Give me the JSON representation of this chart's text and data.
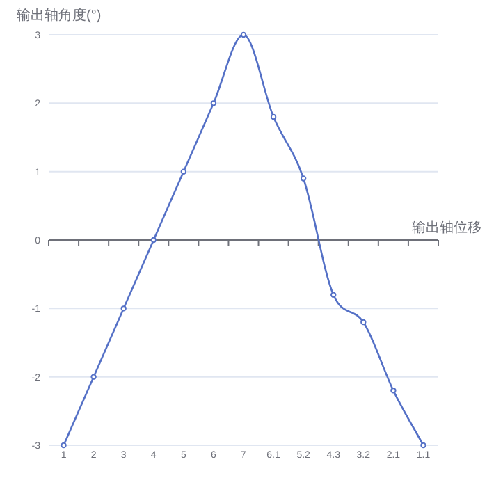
{
  "chart_data": {
    "type": "line",
    "xlabel": "输出轴位移",
    "ylabel": "输出轴角度(°)",
    "categories": [
      "1",
      "2",
      "3",
      "4",
      "5",
      "6",
      "7",
      "6.1",
      "5.2",
      "4.3",
      "3.2",
      "2.1",
      "1.1"
    ],
    "series": [
      {
        "color": "#5470c6",
        "values": [
          -3,
          -2,
          -1,
          0,
          1,
          2,
          3,
          1.8,
          0.9,
          -0.8,
          -1.2,
          -2.2,
          -3
        ]
      }
    ],
    "ylim": [
      -3,
      3
    ],
    "yticks": [
      -3,
      -2,
      -1,
      0,
      1,
      2,
      3
    ],
    "grid": "y",
    "marker": "circle"
  }
}
